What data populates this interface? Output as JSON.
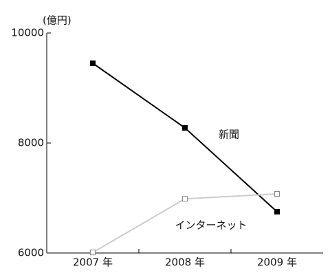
{
  "chart_data": {
    "type": "line",
    "y_unit_label": "(億円)",
    "categories": [
      "2007 年",
      "2008 年",
      "2009 年"
    ],
    "series": [
      {
        "name": "新聞",
        "color": "#000000",
        "values": [
          9450,
          8275,
          6750
        ]
      },
      {
        "name": "インターネット",
        "color": "#cccccc",
        "values": [
          6010,
          6985,
          7075
        ]
      }
    ],
    "ylim": [
      6000,
      10000
    ],
    "yticks": [
      6000,
      8000,
      10000
    ]
  }
}
